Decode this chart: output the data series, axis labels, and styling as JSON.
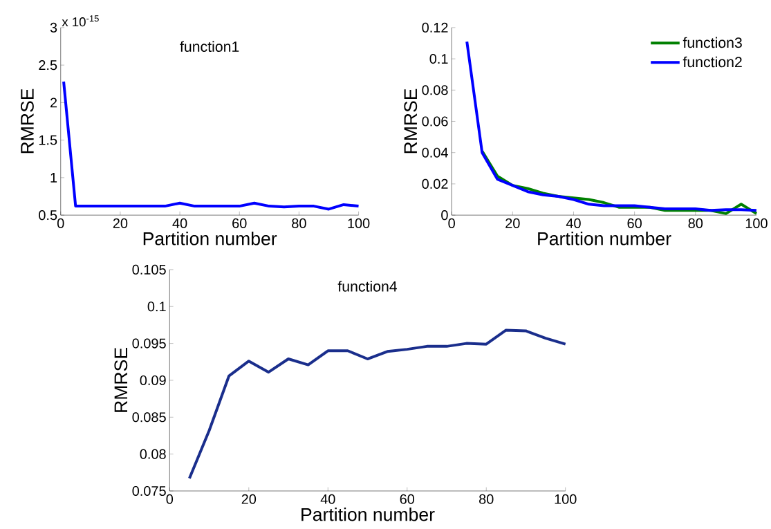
{
  "chart_data": [
    {
      "type": "line",
      "title": "function1",
      "xlabel": "Partition number",
      "ylabel": "RMRSE",
      "annotations": [
        "x 10$^{-15}$"
      ],
      "x": [
        1,
        5,
        10,
        15,
        20,
        25,
        30,
        35,
        40,
        45,
        50,
        55,
        60,
        65,
        70,
        75,
        80,
        85,
        90,
        95,
        100
      ],
      "series": [
        {
          "color": "#0000ff",
          "values": [
            2.28,
            0.62,
            0.62,
            0.62,
            0.62,
            0.62,
            0.62,
            0.62,
            0.66,
            0.62,
            0.62,
            0.62,
            0.62,
            0.66,
            0.62,
            0.61,
            0.62,
            0.62,
            0.58,
            0.64,
            0.62
          ]
        }
      ],
      "xlim": [
        0,
        100
      ],
      "xticks": [
        0,
        20,
        40,
        60,
        80,
        100
      ],
      "ylim": [
        0.5,
        3
      ],
      "yticks": [
        0.5,
        1,
        1.5,
        2,
        2.5,
        3
      ],
      "grid": false,
      "legend": false,
      "marker": "none",
      "line_style": "solid"
    },
    {
      "type": "line",
      "xlabel": "Partition number",
      "ylabel": "RMRSE",
      "x": [
        5,
        10,
        15,
        20,
        25,
        30,
        35,
        40,
        45,
        50,
        55,
        60,
        65,
        70,
        75,
        80,
        85,
        90,
        95,
        100
      ],
      "series": [
        {
          "name": "function3",
          "color": "#008000",
          "values": [
            null,
            0.041,
            0.025,
            0.019,
            0.017,
            0.014,
            0.012,
            0.011,
            0.01,
            0.008,
            0.005,
            0.005,
            0.005,
            0.003,
            0.003,
            0.003,
            0.003,
            0.001,
            0.007,
            0.001
          ]
        },
        {
          "name": "function2",
          "color": "#0000ff",
          "values": [
            0.111,
            0.04,
            0.023,
            0.019,
            0.015,
            0.013,
            0.012,
            0.01,
            0.007,
            0.006,
            0.006,
            0.006,
            0.005,
            0.004,
            0.004,
            0.004,
            0.003,
            0.0035,
            0.0035,
            0.003
          ]
        }
      ],
      "xlim": [
        0,
        100
      ],
      "xticks": [
        0,
        20,
        40,
        60,
        80,
        100
      ],
      "ylim": [
        0,
        0.12
      ],
      "yticks": [
        0,
        0.02,
        0.04,
        0.06,
        0.08,
        0.1,
        0.12
      ],
      "grid": false,
      "legend": "top right",
      "marker": "none",
      "line_style": "solid"
    },
    {
      "type": "line",
      "title": "function4",
      "xlabel": "Partition number",
      "ylabel": "RMRSE",
      "x": [
        5,
        10,
        15,
        20,
        25,
        30,
        35,
        40,
        45,
        50,
        55,
        60,
        65,
        70,
        75,
        80,
        85,
        90,
        95,
        100
      ],
      "series": [
        {
          "color": "#1a2e8c",
          "values": [
            0.0767,
            0.0832,
            0.0906,
            0.0926,
            0.0911,
            0.0929,
            0.0921,
            0.094,
            0.094,
            0.0929,
            0.0939,
            0.0942,
            0.0946,
            0.0946,
            0.095,
            0.0949,
            0.0968,
            0.0967,
            0.0957,
            0.0949
          ]
        }
      ],
      "xlim": [
        0,
        100
      ],
      "xticks": [
        0,
        20,
        40,
        60,
        80,
        100
      ],
      "ylim": [
        0.075,
        0.105
      ],
      "yticks": [
        0.075,
        0.08,
        0.085,
        0.09,
        0.095,
        0.1,
        0.105
      ],
      "grid": false,
      "legend": false,
      "marker": "none",
      "line_style": "solid"
    }
  ]
}
